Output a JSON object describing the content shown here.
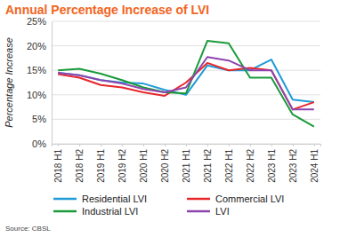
{
  "chart_data": {
    "type": "line",
    "title": "Annual Percentage Increase of LVI",
    "y_label": "Percentage Increase",
    "source": "Source: CBSL",
    "categories": [
      "2018 H1",
      "2018 H2",
      "2019 H1",
      "2019 H2",
      "2020 H1",
      "2020 H2",
      "2021 H1",
      "2021 H2",
      "2022 H1",
      "2022 H2",
      "2023 H1",
      "2023 H2",
      "2024 H1"
    ],
    "series": [
      {
        "name": "Residential LVI",
        "color": "#1f9bd7",
        "values": [
          14.5,
          14,
          13,
          12.5,
          12.3,
          11,
          10,
          16,
          15,
          15,
          17.2,
          9,
          8.5
        ]
      },
      {
        "name": "Commercial LVI",
        "color": "#e8262b",
        "values": [
          14.2,
          13.5,
          12,
          11.5,
          10.5,
          9.8,
          12.5,
          16.5,
          15,
          15.5,
          15,
          7,
          8.5
        ]
      },
      {
        "name": "Industrial LVI",
        "color": "#1a9a3a",
        "values": [
          15,
          15.3,
          14.3,
          13,
          11.5,
          10.5,
          10.3,
          21,
          20.5,
          13.5,
          13.5,
          6,
          3.5
        ]
      },
      {
        "name": "LVI",
        "color": "#8e44ad",
        "values": [
          14.5,
          14,
          13,
          12.3,
          11.2,
          10.5,
          11.5,
          17.7,
          17,
          15,
          15,
          7,
          7
        ]
      }
    ],
    "ylim": [
      0,
      25
    ],
    "yticks": [
      {
        "value": 0,
        "label": "0%"
      },
      {
        "value": 5,
        "label": "5%"
      },
      {
        "value": 10,
        "label": "10%"
      },
      {
        "value": 15,
        "label": "15%"
      },
      {
        "value": 20,
        "label": "20%"
      },
      {
        "value": 25,
        "label": "25%"
      }
    ],
    "grid": true,
    "legend": "bottom"
  }
}
